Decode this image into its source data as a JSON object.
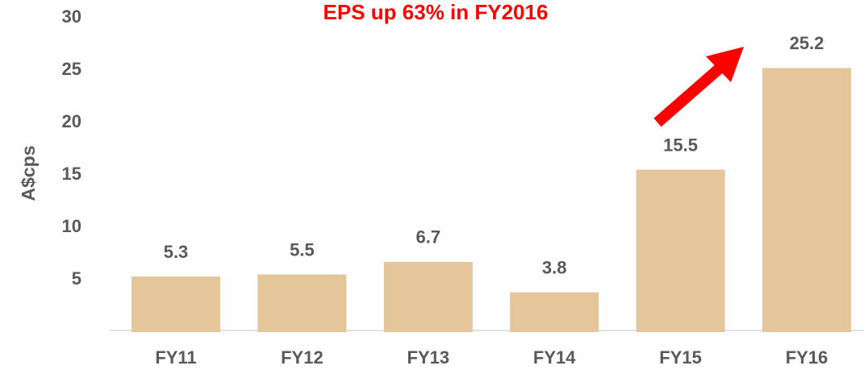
{
  "chart_data": {
    "type": "bar",
    "title": "EPS up 63% in FY2016",
    "y_label": "A$cps",
    "categories": [
      "FY11",
      "FY12",
      "FY13",
      "FY14",
      "FY15",
      "FY16"
    ],
    "values": [
      5.3,
      5.5,
      6.7,
      3.8,
      15.5,
      25.2
    ],
    "color": "#e5c59a",
    "title_color": "#ff0000",
    "ylim": [
      0,
      30
    ],
    "yticks": [
      5,
      10,
      15,
      20,
      25,
      30
    ],
    "grid": false
  }
}
